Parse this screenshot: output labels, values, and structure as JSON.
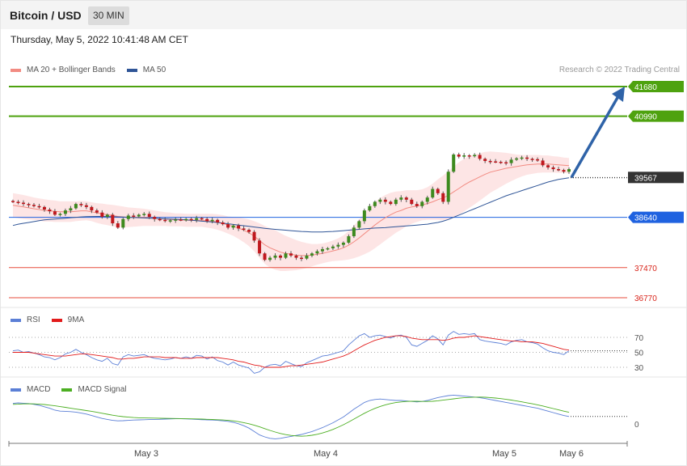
{
  "header": {
    "title": "Bitcoin / USD",
    "timeframe": "30 MIN"
  },
  "timestamp": "Thursday, May 5, 2022 10:41:48 AM CET",
  "credit": "Research © 2022 Trading Central",
  "legends": {
    "price": [
      {
        "label": "MA 20 + Bollinger Bands",
        "color": "#f28b82"
      },
      {
        "label": "MA 50",
        "color": "#2f5597"
      }
    ],
    "rsi": [
      {
        "label": "RSI",
        "color": "#5b7fd6"
      },
      {
        "label": "9MA",
        "color": "#e21b1b"
      }
    ],
    "macd": [
      {
        "label": "MACD",
        "color": "#5b7fd6"
      },
      {
        "label": "MACD Signal",
        "color": "#4caf22"
      }
    ]
  },
  "chart_data": [
    {
      "type": "candlestick",
      "panel": "price",
      "ylim": [
        36600,
        41950
      ],
      "current_price": 39567,
      "levels": [
        {
          "value": 41680,
          "label": "41680",
          "kind": "resistance",
          "color": "#4ea20f"
        },
        {
          "value": 40990,
          "label": "40990",
          "kind": "resistance",
          "color": "#4ea20f"
        },
        {
          "value": 39567,
          "label": "39567",
          "kind": "current",
          "color": "#333333"
        },
        {
          "value": 38640,
          "label": "38640",
          "kind": "pivot",
          "color": "#1f62e0"
        },
        {
          "value": 37470,
          "label": "37470",
          "kind": "support",
          "color": "#e74c3c"
        },
        {
          "value": 36770,
          "label": "36770",
          "kind": "support",
          "color": "#e74c3c"
        }
      ],
      "closes": [
        39000,
        38980,
        38950,
        38930,
        38900,
        38880,
        38820,
        38780,
        38700,
        38720,
        38800,
        38850,
        38950,
        38920,
        38880,
        38800,
        38750,
        38650,
        38700,
        38500,
        38400,
        38600,
        38680,
        38660,
        38700,
        38720,
        38650,
        38600,
        38580,
        38560,
        38570,
        38590,
        38580,
        38600,
        38580,
        38620,
        38600,
        38550,
        38580,
        38520,
        38480,
        38400,
        38450,
        38380,
        38350,
        38300,
        38100,
        37800,
        37650,
        37700,
        37750,
        37700,
        37800,
        37750,
        37700,
        37680,
        37750,
        37800,
        37850,
        37900,
        37920,
        37960,
        38000,
        38050,
        38200,
        38400,
        38550,
        38800,
        38900,
        39000,
        39050,
        39000,
        38950,
        39050,
        39100,
        39050,
        38950,
        38900,
        39000,
        39100,
        39300,
        39200,
        39000,
        39700,
        40100,
        40050,
        40080,
        40060,
        40090,
        40000,
        39950,
        39940,
        39930,
        39920,
        39900,
        39980,
        40010,
        40030,
        40000,
        39990,
        39960,
        39850,
        39800,
        39760,
        39740,
        39700,
        39760
      ],
      "ma20": [
        38920,
        38900,
        38880,
        38860,
        38840,
        38820,
        38800,
        38790,
        38780,
        38770,
        38770,
        38770,
        38780,
        38790,
        38790,
        38770,
        38740,
        38720,
        38700,
        38680,
        38660,
        38650,
        38640,
        38640,
        38640,
        38640,
        38630,
        38620,
        38610,
        38600,
        38590,
        38580,
        38580,
        38570,
        38570,
        38570,
        38570,
        38560,
        38550,
        38530,
        38500,
        38460,
        38430,
        38390,
        38340,
        38280,
        38200,
        38100,
        38000,
        37930,
        37880,
        37830,
        37800,
        37780,
        37760,
        37750,
        37750,
        37760,
        37780,
        37800,
        37830,
        37860,
        37890,
        37930,
        37990,
        38070,
        38160,
        38260,
        38360,
        38460,
        38550,
        38630,
        38700,
        38760,
        38800,
        38850,
        38880,
        38900,
        38930,
        38960,
        39000,
        39050,
        39090,
        39150,
        39230,
        39310,
        39390,
        39460,
        39520,
        39580,
        39640,
        39690,
        39720,
        39750,
        39780,
        39800,
        39820,
        39840,
        39860,
        39870,
        39880,
        39880,
        39880,
        39870,
        39860,
        39850,
        39840
      ],
      "ma50": [
        38450,
        38480,
        38500,
        38520,
        38540,
        38560,
        38580,
        38590,
        38600,
        38610,
        38620,
        38630,
        38640,
        38650,
        38655,
        38658,
        38660,
        38660,
        38658,
        38655,
        38650,
        38645,
        38640,
        38635,
        38630,
        38625,
        38620,
        38615,
        38610,
        38605,
        38600,
        38595,
        38590,
        38580,
        38570,
        38560,
        38550,
        38540,
        38530,
        38520,
        38505,
        38490,
        38475,
        38460,
        38445,
        38430,
        38415,
        38400,
        38385,
        38370,
        38360,
        38350,
        38340,
        38330,
        38320,
        38310,
        38305,
        38300,
        38300,
        38300,
        38305,
        38310,
        38320,
        38330,
        38340,
        38350,
        38360,
        38370,
        38380,
        38390,
        38395,
        38400,
        38410,
        38420,
        38430,
        38440,
        38450,
        38460,
        38470,
        38480,
        38500,
        38520,
        38550,
        38590,
        38640,
        38690,
        38740,
        38790,
        38840,
        38890,
        38940,
        38990,
        39040,
        39090,
        39140,
        39180,
        39220,
        39260,
        39300,
        39340,
        39380,
        39420,
        39460,
        39490,
        39520,
        39540,
        39560
      ],
      "bollinger_halfwidth": [
        280,
        280,
        280,
        270,
        260,
        260,
        260,
        250,
        250,
        240,
        240,
        240,
        230,
        230,
        220,
        220,
        230,
        240,
        240,
        250,
        250,
        240,
        230,
        220,
        210,
        200,
        190,
        180,
        170,
        160,
        160,
        150,
        150,
        150,
        150,
        150,
        150,
        160,
        170,
        180,
        190,
        200,
        220,
        250,
        280,
        310,
        350,
        400,
        440,
        460,
        460,
        440,
        410,
        380,
        350,
        320,
        290,
        260,
        240,
        230,
        230,
        240,
        260,
        290,
        330,
        380,
        430,
        480,
        520,
        540,
        540,
        530,
        510,
        480,
        450,
        420,
        390,
        370,
        360,
        380,
        420,
        470,
        520,
        560,
        590,
        610,
        610,
        600,
        580,
        550,
        520,
        480,
        440,
        400,
        360,
        320,
        280,
        250,
        230,
        220,
        210,
        200,
        200,
        190,
        190,
        180,
        180
      ],
      "forecast": {
        "from": 39567,
        "to": 41680
      }
    },
    {
      "type": "line",
      "panel": "RSI",
      "ylim": [
        20,
        80
      ],
      "levels": [
        70,
        50,
        30
      ],
      "series": [
        {
          "name": "RSI",
          "values": [
            52,
            53,
            50,
            51,
            49,
            47,
            44,
            43,
            40,
            43,
            48,
            50,
            54,
            50,
            47,
            43,
            40,
            38,
            42,
            35,
            33,
            44,
            47,
            45,
            46,
            47,
            44,
            42,
            41,
            40,
            41,
            43,
            42,
            44,
            42,
            46,
            45,
            41,
            44,
            39,
            37,
            33,
            37,
            33,
            31,
            29,
            22,
            24,
            30,
            33,
            34,
            32,
            38,
            35,
            32,
            31,
            36,
            39,
            42,
            45,
            46,
            48,
            50,
            52,
            60,
            66,
            72,
            75,
            70,
            72,
            73,
            71,
            69,
            72,
            73,
            70,
            60,
            58,
            62,
            66,
            72,
            68,
            60,
            73,
            78,
            74,
            75,
            74,
            75,
            67,
            65,
            64,
            63,
            62,
            60,
            64,
            66,
            67,
            64,
            63,
            61,
            56,
            52,
            50,
            49,
            47,
            52
          ]
        },
        {
          "name": "9MA",
          "values": [
            50,
            50,
            50,
            50,
            49,
            48,
            47,
            46,
            45,
            45,
            45,
            46,
            47,
            48,
            48,
            47,
            46,
            45,
            44,
            43,
            41,
            41,
            42,
            42,
            43,
            44,
            44,
            44,
            44,
            43,
            43,
            43,
            42,
            42,
            42,
            43,
            43,
            43,
            43,
            43,
            42,
            41,
            40,
            38,
            37,
            35,
            33,
            32,
            30,
            30,
            30,
            30,
            31,
            32,
            32,
            33,
            34,
            35,
            36,
            37,
            39,
            41,
            43,
            45,
            48,
            52,
            56,
            60,
            63,
            66,
            68,
            70,
            71,
            72,
            72,
            71,
            69,
            68,
            67,
            67,
            67,
            67,
            66,
            67,
            69,
            70,
            70,
            71,
            72,
            71,
            70,
            69,
            68,
            67,
            66,
            65,
            65,
            64,
            64,
            64,
            63,
            62,
            60,
            58,
            56,
            54,
            53
          ]
        }
      ]
    },
    {
      "type": "line",
      "panel": "MACD",
      "ylim": [
        -300,
        500
      ],
      "levels": [
        0
      ],
      "series": [
        {
          "name": "MACD",
          "values": [
            170,
            175,
            172,
            168,
            160,
            150,
            135,
            120,
            100,
            90,
            88,
            85,
            80,
            70,
            60,
            45,
            30,
            15,
            5,
            -5,
            -10,
            -8,
            -5,
            -2,
            0,
            2,
            3,
            5,
            6,
            8,
            10,
            12,
            12,
            10,
            8,
            5,
            2,
            0,
            -2,
            -5,
            -10,
            -15,
            -25,
            -40,
            -60,
            -85,
            -120,
            -155,
            -175,
            -190,
            -195,
            -190,
            -180,
            -170,
            -160,
            -150,
            -135,
            -120,
            -100,
            -80,
            -55,
            -30,
            0,
            30,
            70,
            110,
            145,
            180,
            200,
            210,
            215,
            210,
            205,
            200,
            200,
            195,
            190,
            185,
            190,
            200,
            215,
            230,
            240,
            250,
            255,
            250,
            245,
            240,
            235,
            228,
            220,
            210,
            200,
            190,
            180,
            170,
            160,
            150,
            140,
            130,
            120,
            105,
            90,
            75,
            60,
            45,
            35
          ]
        },
        {
          "name": "MACD Signal",
          "values": [
            160,
            162,
            165,
            166,
            165,
            162,
            158,
            152,
            145,
            137,
            129,
            120,
            112,
            104,
            96,
            88,
            78,
            68,
            58,
            48,
            40,
            33,
            28,
            24,
            22,
            20,
            19,
            18,
            17,
            16,
            15,
            14,
            13,
            12,
            11,
            10,
            8,
            6,
            4,
            2,
            -1,
            -5,
            -10,
            -18,
            -28,
            -40,
            -55,
            -72,
            -90,
            -108,
            -125,
            -140,
            -152,
            -160,
            -165,
            -168,
            -165,
            -158,
            -148,
            -135,
            -118,
            -98,
            -75,
            -50,
            -22,
            8,
            38,
            68,
            95,
            118,
            138,
            155,
            168,
            178,
            185,
            190,
            192,
            192,
            190,
            190,
            192,
            197,
            203,
            210,
            217,
            223,
            228,
            232,
            234,
            235,
            233,
            230,
            225,
            219,
            212,
            204,
            195,
            186,
            176,
            166,
            155,
            143,
            130,
            117,
            103,
            90,
            78
          ]
        }
      ]
    }
  ],
  "axes": {
    "x_ticks": [
      "May 3",
      "May 4",
      "May 5",
      "May 6"
    ],
    "rsi_ticks": [
      "70",
      "50",
      "30"
    ],
    "macd_ticks": [
      "0"
    ]
  }
}
